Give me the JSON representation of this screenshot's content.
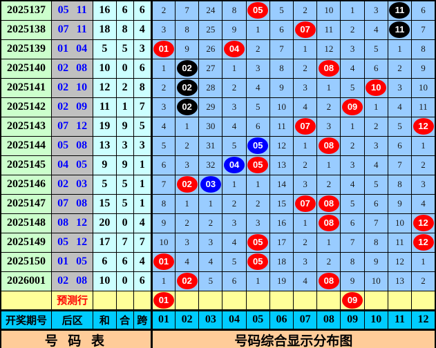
{
  "colors": {
    "period_bg": "#CCFFCC",
    "rear_zone_bg": "#C0C0C0",
    "sum_bg": "#CCFFFF",
    "grid_bg": "#99CCFF",
    "predict_bg": "#FFFF99",
    "header_bg": "#00CCFF",
    "footer_bg": "#FFCC99",
    "rear_text": "#0000FF",
    "ball_red": "#FF0000",
    "ball_black": "#000000",
    "ball_blue": "#0000FF"
  },
  "chart_data": {
    "type": "table",
    "title": "号码综合显示分布图",
    "left_headers": [
      "开奖期号",
      "后区",
      "和",
      "合",
      "跨"
    ],
    "number_columns": [
      "01",
      "02",
      "03",
      "04",
      "05",
      "06",
      "07",
      "08",
      "09",
      "10",
      "11",
      "12"
    ],
    "rows": [
      {
        "period": "2025137",
        "rear": "05 11",
        "sum": "16",
        "he": "6",
        "kua": "6",
        "cells": [
          "2",
          "7",
          "24",
          "8",
          {
            "v": "05",
            "c": "red"
          },
          "5",
          "2",
          "10",
          "1",
          "3",
          {
            "v": "11",
            "c": "black"
          },
          "6"
        ]
      },
      {
        "period": "2025138",
        "rear": "07 11",
        "sum": "18",
        "he": "8",
        "kua": "4",
        "cells": [
          "3",
          "8",
          "25",
          "9",
          "1",
          "6",
          {
            "v": "07",
            "c": "red"
          },
          "11",
          "2",
          "4",
          {
            "v": "11",
            "c": "black"
          },
          "7"
        ]
      },
      {
        "period": "2025139",
        "rear": "01 04",
        "sum": "5",
        "he": "5",
        "kua": "3",
        "cells": [
          {
            "v": "01",
            "c": "red"
          },
          "9",
          "26",
          {
            "v": "04",
            "c": "red"
          },
          "2",
          "7",
          "1",
          "12",
          "3",
          "5",
          "1",
          "8"
        ]
      },
      {
        "period": "2025140",
        "rear": "02 08",
        "sum": "10",
        "he": "0",
        "kua": "6",
        "cells": [
          "1",
          {
            "v": "02",
            "c": "black"
          },
          "27",
          "1",
          "3",
          "8",
          "2",
          {
            "v": "08",
            "c": "red"
          },
          "4",
          "6",
          "2",
          "9"
        ]
      },
      {
        "period": "2025141",
        "rear": "02 10",
        "sum": "12",
        "he": "2",
        "kua": "8",
        "cells": [
          "2",
          {
            "v": "02",
            "c": "black"
          },
          "28",
          "2",
          "4",
          "9",
          "3",
          "1",
          "5",
          {
            "v": "10",
            "c": "red"
          },
          "3",
          "10"
        ]
      },
      {
        "period": "2025142",
        "rear": "02 09",
        "sum": "11",
        "he": "1",
        "kua": "7",
        "cells": [
          "3",
          {
            "v": "02",
            "c": "black"
          },
          "29",
          "3",
          "5",
          "10",
          "4",
          "2",
          {
            "v": "09",
            "c": "red"
          },
          "1",
          "4",
          "11"
        ]
      },
      {
        "period": "2025143",
        "rear": "07 12",
        "sum": "19",
        "he": "9",
        "kua": "5",
        "cells": [
          "4",
          "1",
          "30",
          "4",
          "6",
          "11",
          {
            "v": "07",
            "c": "red"
          },
          "3",
          "1",
          "2",
          "5",
          {
            "v": "12",
            "c": "red"
          }
        ]
      },
      {
        "period": "2025144",
        "rear": "05 08",
        "sum": "13",
        "he": "3",
        "kua": "3",
        "cells": [
          "5",
          "2",
          "31",
          "5",
          {
            "v": "05",
            "c": "blue"
          },
          "12",
          "1",
          {
            "v": "08",
            "c": "red"
          },
          "2",
          "3",
          "6",
          "1"
        ]
      },
      {
        "period": "2025145",
        "rear": "04 05",
        "sum": "9",
        "he": "9",
        "kua": "1",
        "cells": [
          "6",
          "3",
          "32",
          {
            "v": "04",
            "c": "blue"
          },
          {
            "v": "05",
            "c": "red"
          },
          "13",
          "2",
          "1",
          "3",
          "4",
          "7",
          "2"
        ]
      },
      {
        "period": "2025146",
        "rear": "02 03",
        "sum": "5",
        "he": "5",
        "kua": "1",
        "cells": [
          "7",
          {
            "v": "02",
            "c": "red"
          },
          {
            "v": "03",
            "c": "blue"
          },
          "1",
          "1",
          "14",
          "3",
          "2",
          "4",
          "5",
          "8",
          "3"
        ]
      },
      {
        "period": "2025147",
        "rear": "07 08",
        "sum": "15",
        "he": "5",
        "kua": "1",
        "cells": [
          "8",
          "1",
          "1",
          "2",
          "2",
          "15",
          {
            "v": "07",
            "c": "red"
          },
          {
            "v": "08",
            "c": "red"
          },
          "5",
          "6",
          "9",
          "4"
        ]
      },
      {
        "period": "2025148",
        "rear": "08 12",
        "sum": "20",
        "he": "0",
        "kua": "4",
        "cells": [
          "9",
          "2",
          "2",
          "3",
          "3",
          "16",
          "1",
          {
            "v": "08",
            "c": "red"
          },
          "6",
          "7",
          "10",
          {
            "v": "12",
            "c": "red"
          }
        ]
      },
      {
        "period": "2025149",
        "rear": "05 12",
        "sum": "17",
        "he": "7",
        "kua": "7",
        "cells": [
          "10",
          "3",
          "3",
          "4",
          {
            "v": "05",
            "c": "red"
          },
          "17",
          "2",
          "1",
          "7",
          "8",
          "11",
          {
            "v": "12",
            "c": "red"
          }
        ]
      },
      {
        "period": "2025150",
        "rear": "01 05",
        "sum": "6",
        "he": "6",
        "kua": "4",
        "cells": [
          {
            "v": "01",
            "c": "red"
          },
          "4",
          "4",
          "5",
          {
            "v": "05",
            "c": "red"
          },
          "18",
          "3",
          "2",
          "8",
          "9",
          "12",
          "1"
        ]
      },
      {
        "period": "2026001",
        "rear": "02 08",
        "sum": "10",
        "he": "0",
        "kua": "6",
        "cells": [
          "1",
          {
            "v": "02",
            "c": "red"
          },
          "5",
          "6",
          "1",
          "19",
          "4",
          {
            "v": "08",
            "c": "red"
          },
          "9",
          "10",
          "13",
          "2"
        ]
      }
    ],
    "predict_row": {
      "label": "预测行",
      "cells": [
        {
          "v": "01",
          "c": "red"
        },
        "",
        "",
        "",
        "",
        "",
        "",
        "",
        {
          "v": "09",
          "c": "red"
        },
        "",
        "",
        ""
      ]
    },
    "footer": {
      "left": "号 码 表",
      "right": "号码综合显示分布图"
    }
  }
}
